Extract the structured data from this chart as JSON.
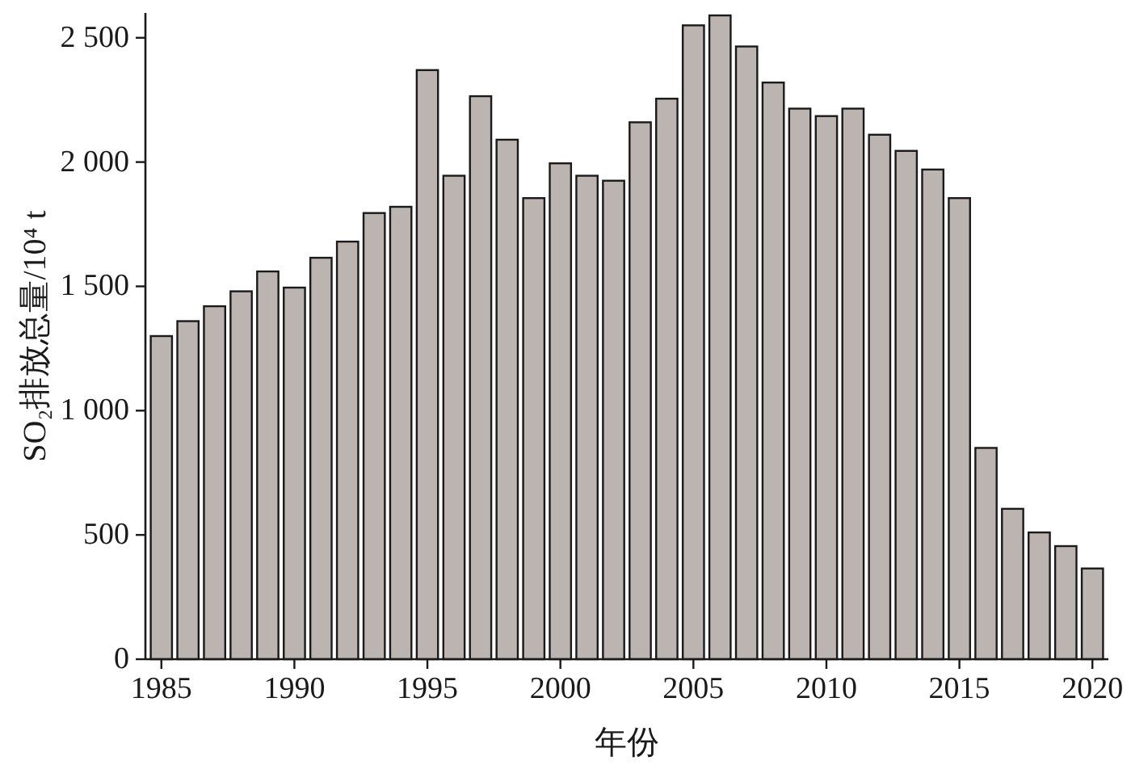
{
  "chart_data": {
    "type": "bar",
    "xlabel": "年份",
    "ylabel": "SO₂排放总量/10⁴ t",
    "color": "#bcb4b0",
    "x": [
      1985,
      1986,
      1987,
      1988,
      1989,
      1990,
      1991,
      1992,
      1993,
      1994,
      1995,
      1996,
      1997,
      1998,
      1999,
      2000,
      2001,
      2002,
      2003,
      2004,
      2005,
      2006,
      2007,
      2008,
      2009,
      2010,
      2011,
      2012,
      2013,
      2014,
      2015,
      2016,
      2017,
      2018,
      2019,
      2020
    ],
    "values": [
      1300,
      1360,
      1420,
      1480,
      1560,
      1495,
      1615,
      1680,
      1795,
      1820,
      2370,
      1945,
      2265,
      2090,
      1855,
      1995,
      1945,
      1925,
      2160,
      2255,
      2550,
      2590,
      2465,
      2320,
      2215,
      2185,
      2215,
      2110,
      2045,
      1970,
      1855,
      850,
      605,
      510,
      455,
      365
    ],
    "xlim": [
      1984.4,
      2020.6
    ],
    "xticks": [
      1985,
      1990,
      1995,
      2000,
      2005,
      2010,
      2015,
      2020
    ],
    "ylim": [
      0,
      2600
    ],
    "yticks": [
      0,
      500,
      {
        "value": 1000,
        "label": "1 000"
      },
      {
        "value": 1500,
        "label": "1 500"
      },
      {
        "value": 2000,
        "label": "2 000"
      },
      {
        "value": 2500,
        "label": "2 500"
      }
    ],
    "grid": false
  }
}
